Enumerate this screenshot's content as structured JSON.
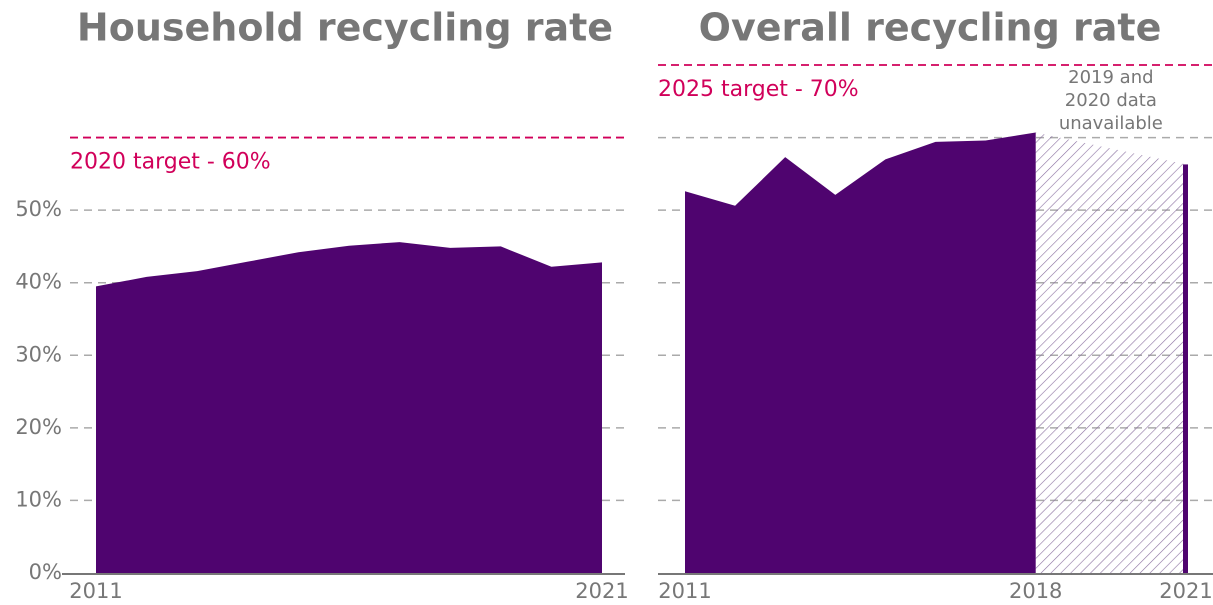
{
  "chart_data": [
    {
      "type": "area",
      "title": "Household recycling rate",
      "color": "#4f046f",
      "x": [
        2011,
        2012,
        2013,
        2014,
        2015,
        2016,
        2017,
        2018,
        2019,
        2020,
        2021
      ],
      "values": [
        39.5,
        40.8,
        41.6,
        42.9,
        44.2,
        45.1,
        45.6,
        44.8,
        45.0,
        42.2,
        42.8
      ],
      "xlim": [
        2011,
        2021
      ],
      "xticks": [
        2011,
        2021
      ],
      "ylim": [
        0,
        70
      ],
      "yticks": [
        {
          "value": 0,
          "label": "0%"
        },
        {
          "value": 10,
          "label": "10%"
        },
        {
          "value": 20,
          "label": "20%"
        },
        {
          "value": 30,
          "label": "30%"
        },
        {
          "value": 40,
          "label": "40%"
        },
        {
          "value": 50,
          "label": "50%"
        }
      ],
      "grid": true,
      "target": {
        "value": 60,
        "label": "2020 target - 60%",
        "color": "#d1005a"
      }
    },
    {
      "type": "area",
      "title": "Overall recycling rate",
      "color": "#4f046f",
      "x": [
        2011,
        2012,
        2013,
        2014,
        2015,
        2016,
        2017,
        2018,
        2019,
        2020,
        2021
      ],
      "values": [
        52.6,
        50.6,
        57.3,
        52.1,
        57.0,
        59.4,
        59.6,
        60.7,
        null,
        null,
        56.3
      ],
      "xlim": [
        2011,
        2021
      ],
      "xticks": [
        2011,
        2018,
        2021
      ],
      "ylim": [
        0,
        70
      ],
      "yticks": [
        0,
        10,
        20,
        30,
        40,
        50,
        60
      ],
      "grid": true,
      "target": {
        "value": 70,
        "label": "2025 target - 70%",
        "color": "#d1005a"
      },
      "gap_note": [
        "2019 and",
        "2020 data",
        "unavailable"
      ]
    }
  ]
}
